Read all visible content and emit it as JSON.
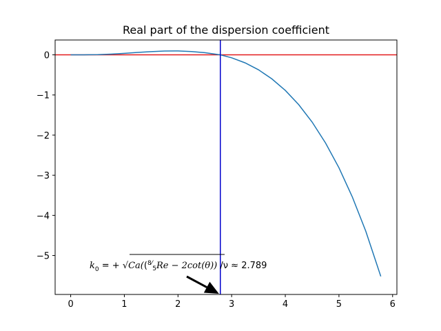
{
  "chart_data": {
    "type": "line",
    "title": "Real part of the dispersion coefficient",
    "xlabel": "",
    "ylabel": "",
    "xlim": [
      -0.29,
      6.08
    ],
    "ylim": [
      -5.97,
      0.37
    ],
    "x_ticks": [
      0,
      1,
      2,
      3,
      4,
      5,
      6
    ],
    "x_tick_labels": [
      "0",
      "1",
      "2",
      "3",
      "4",
      "5",
      "6"
    ],
    "y_ticks": [
      0,
      -1,
      -2,
      -3,
      -4,
      -5
    ],
    "y_tick_labels": [
      "0",
      "−1",
      "−2",
      "−3",
      "−4",
      "−5"
    ],
    "grid": false,
    "series": [
      {
        "color": "#1f77b4",
        "x": [
          0.0,
          0.25,
          0.5,
          0.75,
          1.0,
          1.25,
          1.5,
          1.75,
          2.0,
          2.25,
          2.5,
          2.75,
          2.789,
          3.0,
          3.25,
          3.5,
          3.75,
          4.0,
          4.25,
          4.5,
          4.75,
          5.0,
          5.25,
          5.5,
          5.78
        ],
        "y": [
          0.0,
          0.0007,
          0.0055,
          0.018,
          0.037,
          0.06,
          0.081,
          0.095,
          0.097,
          0.083,
          0.054,
          0.007,
          0.0,
          -0.073,
          -0.199,
          -0.372,
          -0.599,
          -0.886,
          -1.241,
          -1.675,
          -2.197,
          -2.814,
          -3.543,
          -4.393,
          -5.52
        ]
      }
    ],
    "hline": {
      "y": 0,
      "color": "#e31a1c"
    },
    "vline": {
      "x": 2.789,
      "color": "#0000cc"
    },
    "annotation": {
      "lhs": "k",
      "lhs_sub": "0",
      "eq": " = +",
      "radicand_prefix": "Ca(",
      "frac_num": "8",
      "frac_den": "5",
      "radicand_suffix": "Re − 2cot(θ))",
      "tail": "/ν ≈ 2.789",
      "x": 2.789,
      "y": -5.97
    }
  }
}
